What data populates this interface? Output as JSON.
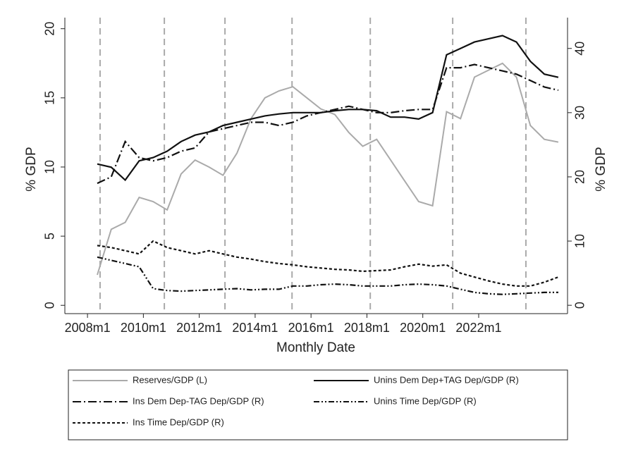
{
  "chart_data": {
    "type": "line",
    "xlabel": "Monthly Date",
    "ylabel": "% GDP",
    "y2label": "% GDP",
    "x": [
      2008.35,
      2008.85,
      2009.35,
      2009.85,
      2010.35,
      2010.85,
      2011.35,
      2011.85,
      2012.35,
      2012.85,
      2013.35,
      2013.85,
      2014.35,
      2014.85,
      2015.35,
      2015.85,
      2016.35,
      2016.85,
      2017.35,
      2017.85,
      2018.35,
      2018.85,
      2019.35,
      2019.85,
      2020.35,
      2020.85,
      2021.35,
      2021.85,
      2022.35,
      2022.85,
      2023.35,
      2023.85,
      2024.35,
      2024.85
    ],
    "xlim": [
      2007.19,
      2025.18
    ],
    "xticks": [
      {
        "value": 2008,
        "label": "2008m1"
      },
      {
        "value": 2010,
        "label": "2010m1"
      },
      {
        "value": 2012,
        "label": "2012m1"
      },
      {
        "value": 2014,
        "label": "2014m1"
      },
      {
        "value": 2016,
        "label": "2016m1"
      },
      {
        "value": 2018,
        "label": "2018m1"
      },
      {
        "value": 2020,
        "label": "2020m1"
      },
      {
        "value": 2022,
        "label": "2022m1"
      }
    ],
    "ylim": [
      -0.6,
      20.8
    ],
    "yticks": [
      0,
      5,
      10,
      15,
      20
    ],
    "y2lim": [
      -1.3,
      44.8
    ],
    "y2ticks": [
      0,
      10,
      20,
      30,
      40
    ],
    "vlines": [
      2008.45,
      2010.75,
      2012.92,
      2015.32,
      2018.12,
      2021.07,
      2023.69
    ],
    "legend": "bottom",
    "series": [
      {
        "name": "Reserves/GDP (L)",
        "color": "#aaaaaa",
        "dash": "none",
        "axis": "y",
        "values": [
          2.2,
          5.5,
          6.0,
          7.8,
          7.5,
          6.9,
          9.5,
          10.5,
          10.0,
          9.4,
          11.0,
          13.5,
          15.0,
          15.5,
          15.8,
          15.0,
          14.2,
          13.8,
          12.5,
          11.5,
          12.0,
          10.5,
          9.0,
          7.5,
          7.2,
          14.0,
          13.5,
          16.5,
          17.0,
          17.5,
          16.5,
          13.0,
          12.0,
          11.8
        ]
      },
      {
        "name": "Unins Dem Dep+TAG Dep/GDP (R)",
        "color": "#111111",
        "dash": "none",
        "axis": "y2",
        "values": [
          22,
          21.5,
          19.5,
          22.5,
          23,
          24,
          25.5,
          26.5,
          27,
          28,
          28.5,
          29,
          29.5,
          29.8,
          30,
          30,
          30,
          30.3,
          30.5,
          30.5,
          30.3,
          29.3,
          29.3,
          29,
          30,
          39,
          40,
          41,
          41.5,
          42,
          41,
          38,
          36,
          35.5
        ]
      },
      {
        "name": "Ins Dem Dep-TAG Dep/GDP (R)",
        "color": "#111111",
        "dash": "12,4,2,4",
        "axis": "y2",
        "values": [
          19,
          20,
          25.5,
          23,
          22.5,
          23,
          24,
          24.5,
          27,
          27.5,
          28,
          28.5,
          28.5,
          28,
          28.5,
          29.5,
          30,
          30.5,
          31,
          30.5,
          30,
          30,
          30.3,
          30.5,
          30.5,
          37,
          37,
          37.5,
          37,
          36.5,
          36,
          35,
          34,
          33.5
        ]
      },
      {
        "name": "Unins Time Dep/GDP (R)",
        "color": "#111111",
        "dash": "8,3,2,3,2,3",
        "axis": "y2",
        "values": [
          7.5,
          7,
          6.5,
          6,
          2.6,
          2.3,
          2.2,
          2.3,
          2.4,
          2.5,
          2.6,
          2.4,
          2.5,
          2.5,
          3,
          3,
          3.2,
          3.3,
          3.2,
          3,
          3,
          3,
          3.2,
          3.3,
          3.2,
          3,
          2.5,
          2,
          1.8,
          1.7,
          1.8,
          1.9,
          2,
          2
        ]
      },
      {
        "name": "Ins Time Dep/GDP (R)",
        "color": "#111111",
        "dash": "4,3",
        "axis": "y2",
        "values": [
          9.3,
          9,
          8.5,
          8,
          10,
          9,
          8.5,
          8,
          8.5,
          8,
          7.5,
          7.2,
          6.8,
          6.5,
          6.3,
          6,
          5.8,
          5.6,
          5.5,
          5.3,
          5.4,
          5.5,
          6,
          6.4,
          6.1,
          6.3,
          5,
          4.4,
          3.8,
          3.3,
          3,
          3,
          3.6,
          4.4
        ]
      }
    ]
  }
}
